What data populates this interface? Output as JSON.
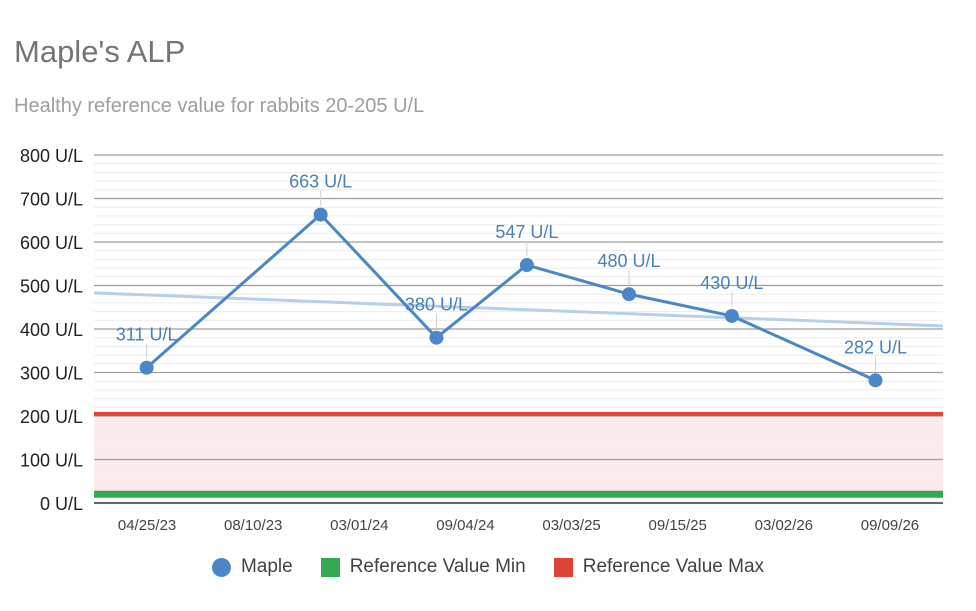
{
  "chart_data": {
    "type": "line",
    "title": "Maple's ALP",
    "subtitle": "Healthy reference value for rabbits 20-205 U/L",
    "categories": [
      "04/25/23",
      "08/10/23",
      "03/01/24",
      "09/04/24",
      "03/03/25",
      "09/15/25",
      "03/02/26",
      "09/09/26"
    ],
    "series": [
      {
        "name": "Maple",
        "color": "#4a86c8",
        "points": [
          {
            "x": "2023-05-25",
            "y": 311,
            "label": "311 U/L"
          },
          {
            "x": "2024-03-01",
            "y": 663,
            "label": "663 U/L"
          },
          {
            "x": "2024-09-04",
            "y": 380,
            "label": "380 U/L"
          },
          {
            "x": "2025-01-28",
            "y": 547,
            "label": "547 U/L"
          },
          {
            "x": "2025-07-12",
            "y": 480,
            "label": "480 U/L"
          },
          {
            "x": "2025-12-25",
            "y": 430,
            "label": "430 U/L"
          },
          {
            "x": "2026-08-14",
            "y": 282,
            "label": "282 U/L"
          }
        ]
      },
      {
        "name": "Reference Value Min",
        "color": "#34a853",
        "value": 20
      },
      {
        "name": "Reference Value Max",
        "color": "#db4437",
        "value": 205
      }
    ],
    "trendline": {
      "color": "#b7cfea",
      "start": {
        "x": "2023-03-01",
        "y": 483
      },
      "end": {
        "x": "2026-12-01",
        "y": 407
      }
    },
    "yticks": [
      "0 U/L",
      "100 U/L",
      "200 U/L",
      "300 U/L",
      "400 U/L",
      "500 U/L",
      "600 U/L",
      "700 U/L",
      "800 U/L"
    ],
    "ylim": [
      0,
      800
    ],
    "xlim": [
      "2023-03-01",
      "2026-12-01"
    ],
    "grid": true,
    "legend_position": "bottom"
  }
}
